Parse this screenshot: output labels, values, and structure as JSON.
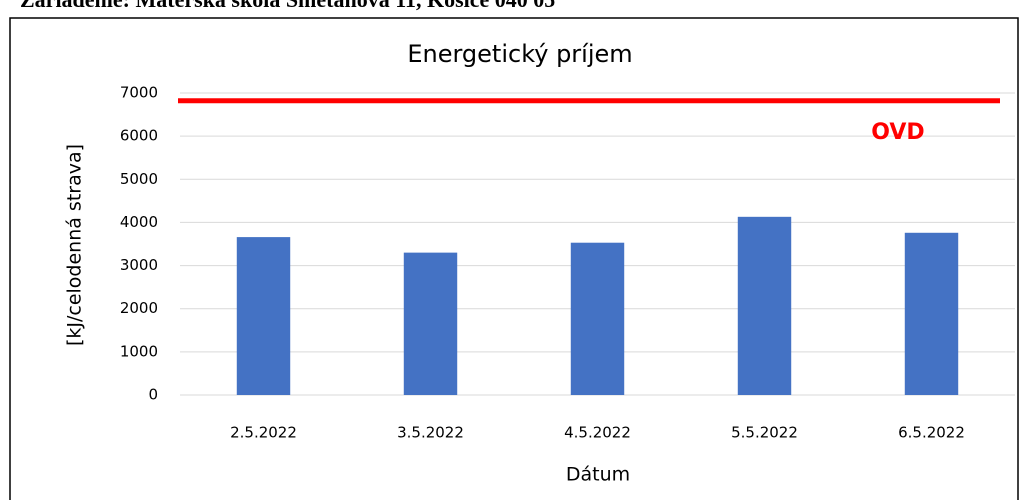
{
  "header": "Zariadenie: Materská škola Smetanová 11, Košice 040 05",
  "chart_data": {
    "type": "bar",
    "title": "Energetický príjem",
    "x_label": "Dátum",
    "y_label": "[kJ/celodenná strava]",
    "categories": [
      "2.5.2022",
      "3.5.2022",
      "4.5.2022",
      "5.5.2022",
      "6.5.2022"
    ],
    "values": [
      3660,
      3300,
      3530,
      4130,
      3760
    ],
    "color": "#4472c4",
    "ylim": [
      0,
      7000
    ],
    "yticks": [
      0,
      1000,
      2000,
      3000,
      4000,
      5000,
      6000,
      7000
    ],
    "grid": true,
    "reference_line": {
      "label": "OVD",
      "value": 6820,
      "color": "#ff0000"
    }
  }
}
